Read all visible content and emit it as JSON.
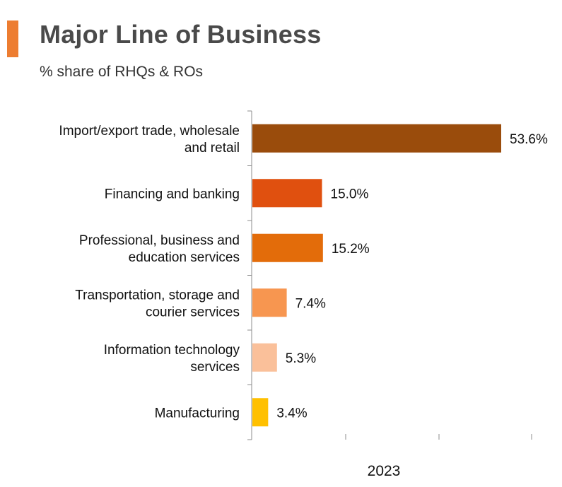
{
  "header": {
    "title": "Major Line of Business",
    "subtitle": "% share of RHQs & ROs",
    "accent_color": "#ED7D31"
  },
  "chart_data": {
    "type": "bar",
    "orientation": "horizontal",
    "title": "Major Line of Business",
    "subtitle": "% share of RHQs & ROs",
    "xlabel": "2023",
    "ylabel": "",
    "categories": [
      [
        "Import/export trade, wholesale",
        "and retail"
      ],
      [
        "Financing and banking"
      ],
      [
        "Professional, business and",
        "education services"
      ],
      [
        "Transportation, storage and",
        "courier services"
      ],
      [
        "Information technology",
        "services"
      ],
      [
        "Manufacturing"
      ]
    ],
    "values": [
      53.6,
      15.0,
      15.2,
      7.4,
      5.3,
      3.4
    ],
    "value_labels": [
      "53.6%",
      "15.0%",
      "15.2%",
      "7.4%",
      "5.3%",
      "3.4%"
    ],
    "colors": [
      "#9A4C0C",
      "#E0500F",
      "#E36C0A",
      "#F79650",
      "#FAC09A",
      "#FFC000"
    ],
    "xlim": [
      0,
      60
    ],
    "grid": false
  }
}
